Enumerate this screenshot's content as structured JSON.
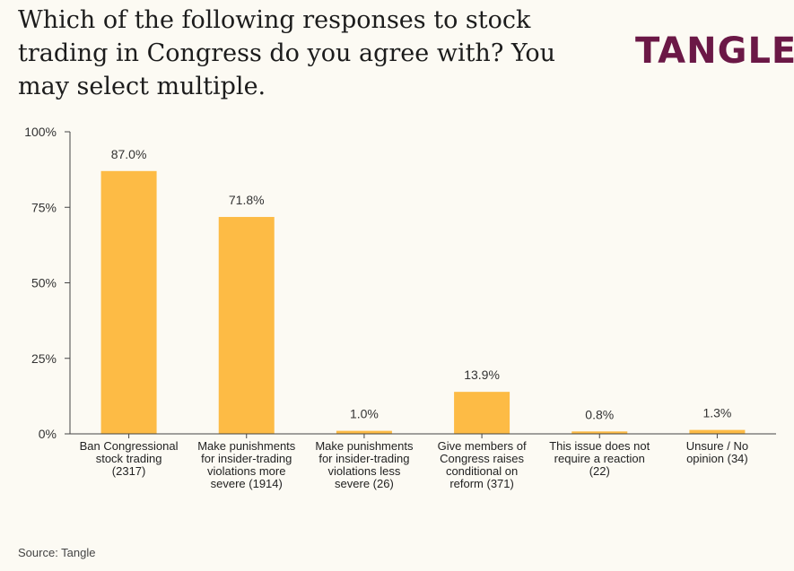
{
  "header": {
    "title": "Which of the following responses to stock trading in Congress do you agree with? You may select multiple.",
    "logo": "TANGLE"
  },
  "footer": {
    "source": "Source: Tangle"
  },
  "colors": {
    "bar": "#fdbb45",
    "axis": "#444444",
    "brand": "#6b1846",
    "background": "#fcfaf3"
  },
  "chart_data": {
    "type": "bar",
    "title": "Which of the following responses to stock trading in Congress do you agree with? You may select multiple.",
    "xlabel": "",
    "ylabel": "",
    "ylim": [
      0,
      100
    ],
    "yticks": [
      0,
      25,
      50,
      75,
      100
    ],
    "ytick_labels": [
      "0%",
      "25%",
      "50%",
      "75%",
      "100%"
    ],
    "grid": false,
    "categories": [
      [
        "Ban Congressional",
        "stock trading",
        "(2317)"
      ],
      [
        "Make punishments",
        "for insider-trading",
        "violations more",
        "severe (1914)"
      ],
      [
        "Make punishments",
        "for insider-trading",
        "violations less",
        "severe (26)"
      ],
      [
        "Give members of",
        "Congress raises",
        "conditional on",
        "reform (371)"
      ],
      [
        "This issue does not",
        "require a reaction",
        "(22)"
      ],
      [
        "Unsure / No",
        "opinion (34)"
      ]
    ],
    "values": [
      87.0,
      71.8,
      1.0,
      13.9,
      0.8,
      1.3
    ],
    "value_labels": [
      "87.0%",
      "71.8%",
      "1.0%",
      "13.9%",
      "0.8%",
      "1.3%"
    ]
  }
}
